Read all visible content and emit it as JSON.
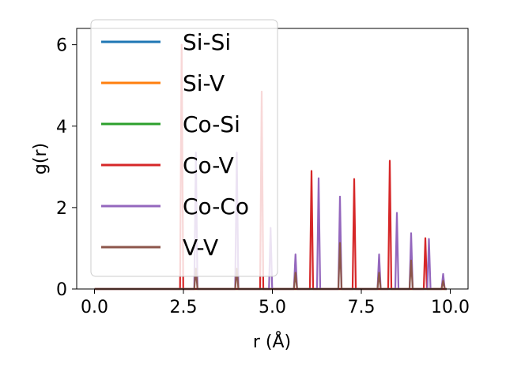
{
  "chart_data": {
    "type": "line",
    "title": "",
    "xlabel": "r (Å)",
    "ylabel": "g(r)",
    "xlim": [
      -0.5,
      10.5
    ],
    "ylim": [
      0,
      6.4
    ],
    "xticks": [
      0.0,
      2.5,
      5.0,
      7.5,
      10.0
    ],
    "xtick_labels": [
      "0.0",
      "2.5",
      "5.0",
      "7.5",
      "10.0"
    ],
    "yticks": [
      0,
      2,
      4,
      6
    ],
    "ytick_labels": [
      "0",
      "2",
      "4",
      "6"
    ],
    "grid": false,
    "legend_position": "upper-left",
    "series": [
      {
        "name": "Si-Si",
        "color": "#1f77b4",
        "peaks": []
      },
      {
        "name": "Si-V",
        "color": "#ff7f0e",
        "peaks": []
      },
      {
        "name": "Co-Si",
        "color": "#2ca02c",
        "peaks": []
      },
      {
        "name": "Co-V",
        "color": "#d62728",
        "peaks": [
          [
            2.45,
            6.0
          ],
          [
            4.7,
            4.85
          ],
          [
            6.1,
            2.9
          ],
          [
            7.3,
            2.7
          ],
          [
            8.3,
            3.15
          ],
          [
            9.3,
            1.25
          ]
        ]
      },
      {
        "name": "Co-Co",
        "color": "#9467bd",
        "peaks": [
          [
            2.85,
            3.35
          ],
          [
            4.0,
            3.35
          ],
          [
            4.95,
            1.5
          ],
          [
            5.65,
            0.85
          ],
          [
            6.3,
            2.72
          ],
          [
            6.9,
            2.27
          ],
          [
            8.0,
            0.85
          ],
          [
            8.5,
            1.87
          ],
          [
            8.9,
            1.37
          ],
          [
            9.4,
            1.23
          ],
          [
            9.8,
            0.37
          ]
        ]
      },
      {
        "name": "V-V",
        "color": "#8c564b",
        "peaks": [
          [
            2.85,
            0.5
          ],
          [
            4.0,
            0.5
          ],
          [
            5.65,
            0.4
          ],
          [
            6.9,
            1.13
          ],
          [
            8.0,
            0.4
          ],
          [
            8.9,
            0.7
          ],
          [
            9.8,
            0.2
          ]
        ]
      }
    ]
  }
}
